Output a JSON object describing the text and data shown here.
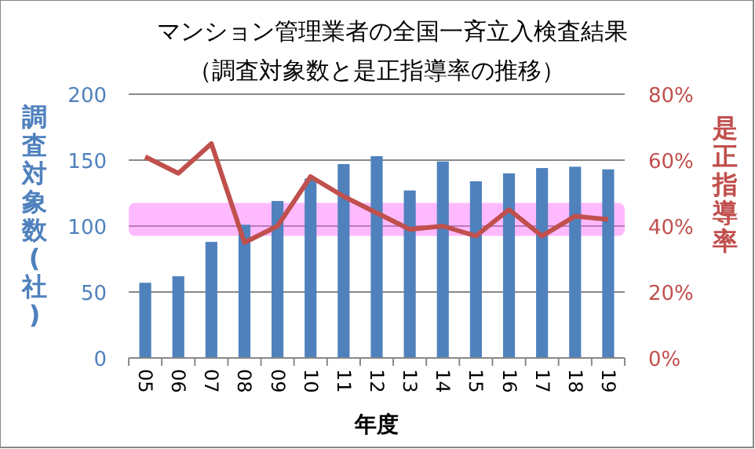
{
  "chart_data": {
    "type": "bar",
    "title": "マンション管理業者の全国一斉立入検査結果",
    "subtitle": "（調査対象数と是正指導率の推移）",
    "xlabel": "年度",
    "ylabel": "調査対象数(社)",
    "y2label": "是正指導率",
    "categories": [
      "05",
      "06",
      "07",
      "08",
      "09",
      "10",
      "11",
      "12",
      "13",
      "14",
      "15",
      "16",
      "17",
      "18",
      "19"
    ],
    "series": [
      {
        "color": "#4f81bd",
        "values": [
          57,
          62,
          88,
          101,
          119,
          136,
          147,
          153,
          127,
          149,
          134,
          140,
          144,
          145,
          143
        ]
      },
      {
        "type": "line",
        "axis": "y2",
        "color": "#c0504d",
        "values": [
          61,
          56,
          65,
          35,
          40,
          55,
          49,
          44,
          39,
          40,
          37,
          45,
          37,
          43,
          42
        ]
      }
    ],
    "ylim": [
      0,
      200
    ],
    "yticks": [
      0,
      50,
      100,
      150,
      200
    ],
    "y2lim": [
      0,
      80
    ],
    "y2ticks": [
      {
        "value": 0,
        "label": "0%"
      },
      {
        "value": 20,
        "label": "20%"
      },
      {
        "value": 40,
        "label": "40%"
      },
      {
        "value": 60,
        "label": "60%"
      },
      {
        "value": 80,
        "label": "80%"
      }
    ],
    "bands": [
      {
        "axis": "y2",
        "from": 37,
        "to": 47,
        "color": "#ff66ff"
      }
    ],
    "grid": "y"
  }
}
